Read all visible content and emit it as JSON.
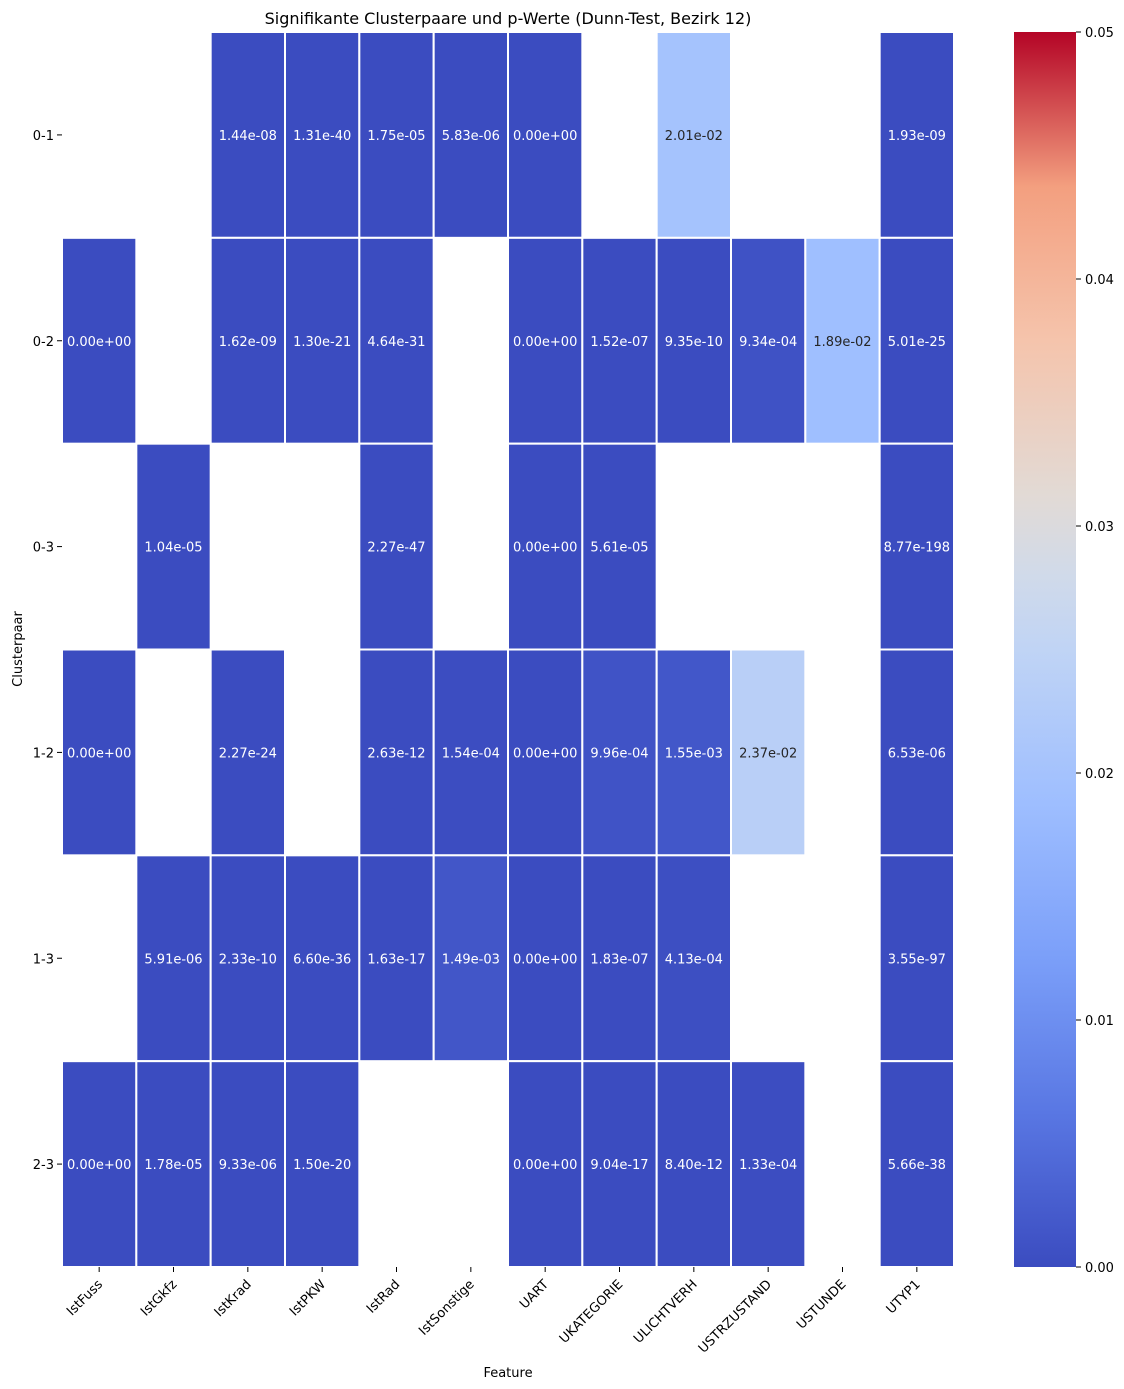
{
  "chart_data": {
    "type": "heatmap",
    "title": "Signifikante Clusterpaare und p-Werte (Dunn-Test, Bezirk 12)",
    "xlabel": "Feature",
    "ylabel": "Clusterpaar",
    "columns": [
      "IstFuss",
      "IstGkfz",
      "IstKrad",
      "IstPKW",
      "IstRad",
      "IstSonstige",
      "UART",
      "UKATEGORIE",
      "ULICHTVERH",
      "USTRZUSTAND",
      "USTUNDE",
      "UTYP1"
    ],
    "rows": [
      "0-1",
      "0-2",
      "0-3",
      "1-2",
      "1-3",
      "2-3"
    ],
    "values": [
      [
        null,
        null,
        1.44e-08,
        1.31e-40,
        1.75e-05,
        5.83e-06,
        0.0,
        null,
        0.0201,
        null,
        null,
        1.93e-09
      ],
      [
        0.0,
        null,
        1.62e-09,
        1.3e-21,
        4.64e-31,
        null,
        0.0,
        1.52e-07,
        9.35e-10,
        0.000934,
        0.0189,
        5.01e-25
      ],
      [
        null,
        1.04e-05,
        null,
        null,
        2.27e-47,
        null,
        0.0,
        5.61e-05,
        null,
        null,
        null,
        8.77e-198
      ],
      [
        0.0,
        null,
        2.27e-24,
        null,
        2.63e-12,
        0.000154,
        0.0,
        0.000996,
        0.00155,
        0.0237,
        null,
        6.53e-06
      ],
      [
        null,
        5.91e-06,
        2.33e-10,
        6.6e-36,
        1.63e-17,
        0.00149,
        0.0,
        1.83e-07,
        0.000413,
        null,
        null,
        3.55e-97
      ],
      [
        0.0,
        1.78e-05,
        9.33e-06,
        1.5e-20,
        null,
        null,
        0.0,
        9.04e-17,
        8.4e-12,
        0.000133,
        null,
        5.66e-38
      ]
    ],
    "labels": [
      [
        null,
        null,
        "1.44e-08",
        "1.31e-40",
        "1.75e-05",
        "5.83e-06",
        "0.00e+00",
        null,
        "2.01e-02",
        null,
        null,
        "1.93e-09"
      ],
      [
        "0.00e+00",
        null,
        "1.62e-09",
        "1.30e-21",
        "4.64e-31",
        null,
        "0.00e+00",
        "1.52e-07",
        "9.35e-10",
        "9.34e-04",
        "1.89e-02",
        "5.01e-25"
      ],
      [
        null,
        "1.04e-05",
        null,
        null,
        "2.27e-47",
        null,
        "0.00e+00",
        "5.61e-05",
        null,
        null,
        null,
        "8.77e-198"
      ],
      [
        "0.00e+00",
        null,
        "2.27e-24",
        null,
        "2.63e-12",
        "1.54e-04",
        "0.00e+00",
        "9.96e-04",
        "1.55e-03",
        "2.37e-02",
        null,
        "6.53e-06"
      ],
      [
        null,
        "5.91e-06",
        "2.33e-10",
        "6.60e-36",
        "1.63e-17",
        "1.49e-03",
        "0.00e+00",
        "1.83e-07",
        "4.13e-04",
        null,
        null,
        "3.55e-97"
      ],
      [
        "0.00e+00",
        "1.78e-05",
        "9.33e-06",
        "1.50e-20",
        null,
        null,
        "0.00e+00",
        "9.04e-17",
        "8.40e-12",
        "1.33e-04",
        null,
        "5.66e-38"
      ]
    ],
    "colorbar": {
      "range": [
        0,
        0.05
      ],
      "ticks": [
        0.0,
        0.01,
        0.02,
        0.03,
        0.04,
        0.05
      ],
      "tick_labels": [
        "0.00",
        "0.01",
        "0.02",
        "0.03",
        "0.04",
        "0.05"
      ],
      "colormap": "coolwarm",
      "position": "right"
    },
    "grid": false
  }
}
